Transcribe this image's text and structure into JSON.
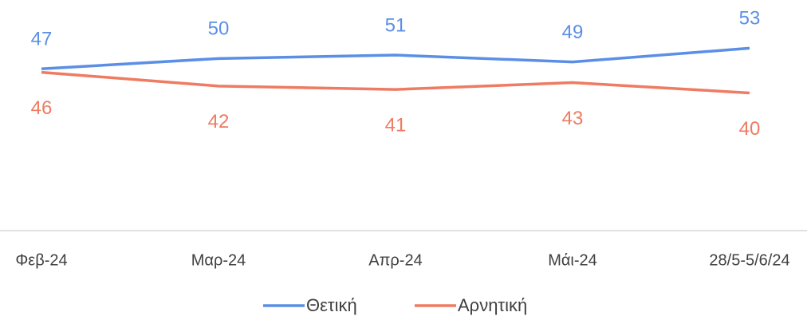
{
  "chart_data": {
    "type": "line",
    "categories": [
      "Φεβ-24",
      "Μαρ-24",
      "Απρ-24",
      "Μάι-24",
      "28/5-5/6/24"
    ],
    "series": [
      {
        "name": "Θετική",
        "color": "#5b8fe6",
        "values": [
          47,
          50,
          51,
          49,
          53
        ]
      },
      {
        "name": "Αρνητική",
        "color": "#ee7b62",
        "values": [
          46,
          42,
          41,
          43,
          40
        ]
      }
    ],
    "ylim": [
      0,
      67
    ],
    "legend": "bottom"
  }
}
